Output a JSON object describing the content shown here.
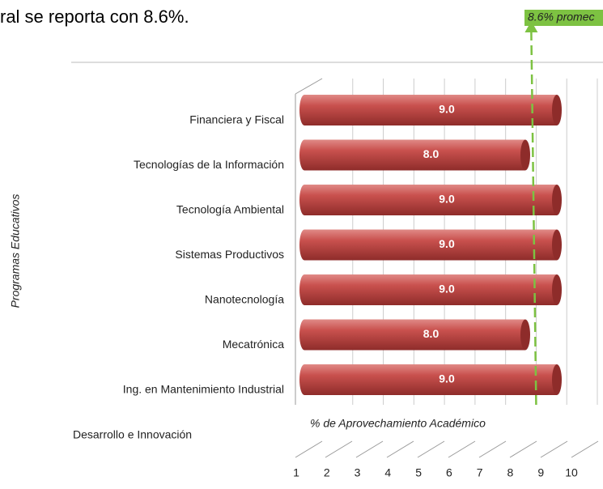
{
  "chart_data": {
    "type": "bar",
    "heading": "ral se reporta con 8.6%.",
    "annotation": "8.6% promec",
    "y_axis_label": "Programas Educativos",
    "x_axis_label": "% de Aprovechamiento Académico",
    "extra_label": "Desarrollo e Innovación",
    "categories": [
      "Financiera y Fiscal",
      "Tecnologías de la Información",
      "Tecnología Ambiental",
      "Sistemas Productivos",
      "Nanotecnología",
      "Mecatrónica",
      "Ing. en Mantenimiento Industrial"
    ],
    "values": [
      9,
      8,
      9,
      9,
      9,
      8,
      9
    ],
    "value_labels": [
      "9.0",
      "8.0",
      "9.0",
      "9.0",
      "9.0",
      "8.0",
      "9.0"
    ],
    "average": 8.6,
    "color": "#c0504d",
    "average_color": "#7dc242",
    "xlim": [
      1,
      10
    ],
    "xticks": [
      1,
      2,
      3,
      4,
      5,
      6,
      7,
      8,
      9,
      10
    ],
    "grid": true
  }
}
